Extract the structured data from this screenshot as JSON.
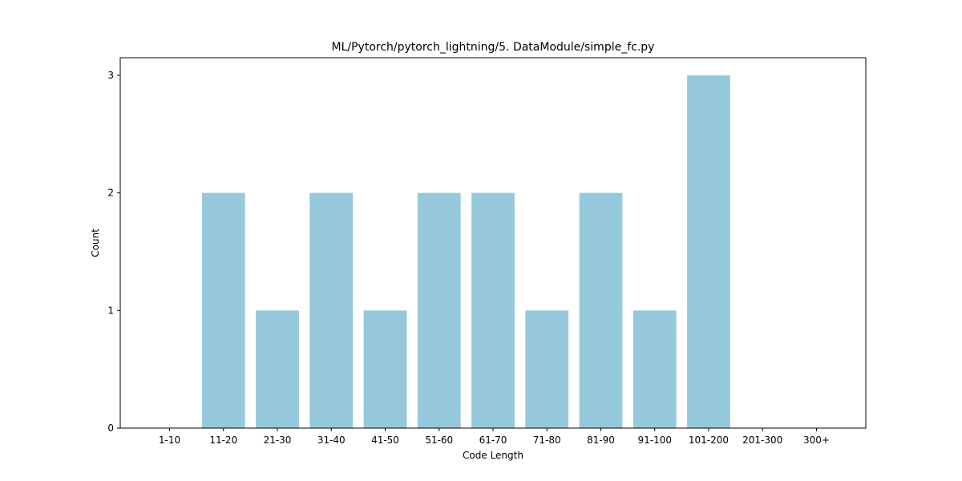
{
  "chart_data": {
    "type": "bar",
    "title": "ML/Pytorch/pytorch_lightning/5. DataModule/simple_fc.py",
    "xlabel": "Code Length",
    "ylabel": "Count",
    "categories": [
      "1-10",
      "11-20",
      "21-30",
      "31-40",
      "41-50",
      "51-60",
      "61-70",
      "71-80",
      "81-90",
      "91-100",
      "101-200",
      "201-300",
      "300+"
    ],
    "values": [
      0,
      2,
      1,
      2,
      1,
      2,
      2,
      1,
      2,
      1,
      3,
      0,
      0
    ],
    "ylim": [
      0,
      3.15
    ],
    "yticks": [
      0,
      1,
      2,
      3
    ],
    "bar_color": "#96c8dc",
    "grid": false,
    "legend": "none"
  }
}
